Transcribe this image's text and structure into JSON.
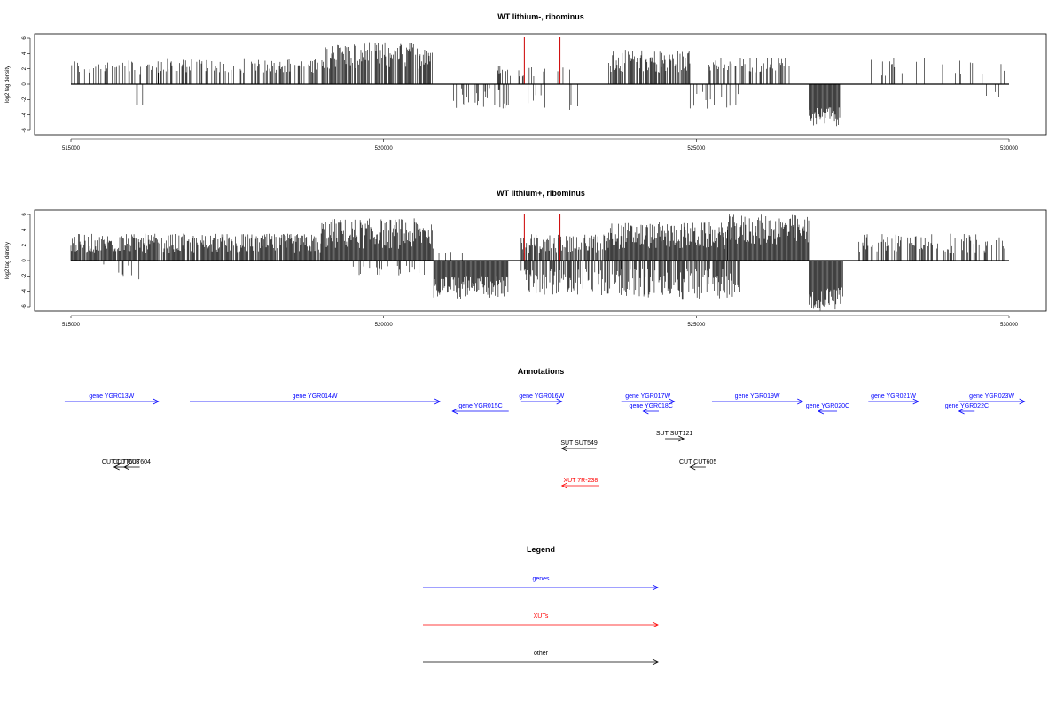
{
  "colors": {
    "gene": "#0000ff",
    "xut": "#ff0000",
    "other": "#000000",
    "marker": "#cc0000",
    "bar": "#000000"
  },
  "chart_data": [
    {
      "type": "bar",
      "title": "WT lithium-, ribominus",
      "ylabel": "log2 tag density",
      "xlim": [
        515000,
        530000
      ],
      "ylim": [
        -6,
        6
      ],
      "xticks": [
        515000,
        520000,
        525000,
        530000
      ],
      "yticks": [
        6,
        4,
        2,
        0,
        -2,
        -4,
        -6
      ],
      "markers": [
        522250,
        522820
      ],
      "plus_regions": [
        {
          "start": 515000,
          "end": 516400,
          "dens": 0.35,
          "min": 1.2,
          "max": 3.2
        },
        {
          "start": 516400,
          "end": 519000,
          "dens": 0.45,
          "min": 1.5,
          "max": 3.3
        },
        {
          "start": 519000,
          "end": 520800,
          "dens": 0.8,
          "min": 2.0,
          "max": 5.5
        },
        {
          "start": 521800,
          "end": 523000,
          "dens": 0.15,
          "min": 1.0,
          "max": 2.5
        },
        {
          "start": 523600,
          "end": 524900,
          "dens": 0.75,
          "min": 1.5,
          "max": 4.5
        },
        {
          "start": 525200,
          "end": 526500,
          "dens": 0.45,
          "min": 1.5,
          "max": 3.5
        },
        {
          "start": 527700,
          "end": 530000,
          "dens": 0.1,
          "min": 1.0,
          "max": 3.5
        }
      ],
      "minus_regions": [
        {
          "start": 516050,
          "end": 516150,
          "dens": 0.2,
          "min": 2.5,
          "max": 3.0
        },
        {
          "start": 520900,
          "end": 522000,
          "dens": 0.3,
          "min": 0.5,
          "max": 3.5
        },
        {
          "start": 522300,
          "end": 523200,
          "dens": 0.1,
          "min": 1.0,
          "max": 3.5
        },
        {
          "start": 524900,
          "end": 525700,
          "dens": 0.2,
          "min": 1.0,
          "max": 3.5
        },
        {
          "start": 526800,
          "end": 527300,
          "dens": 1.0,
          "min": 3.0,
          "max": 5.5
        },
        {
          "start": 529000,
          "end": 529900,
          "dens": 0.05,
          "min": 1.0,
          "max": 2.0
        }
      ]
    },
    {
      "type": "bar",
      "title": "WT lithium+, ribominus",
      "ylabel": "log2 tag density",
      "xlim": [
        515000,
        530000
      ],
      "ylim": [
        -6,
        6
      ],
      "xticks": [
        515000,
        520000,
        525000,
        530000
      ],
      "yticks": [
        6,
        4,
        2,
        0,
        -2,
        -4,
        -6
      ],
      "markers": [
        522250,
        522820
      ],
      "plus_regions": [
        {
          "start": 515000,
          "end": 519000,
          "dens": 0.9,
          "min": 1.0,
          "max": 3.5
        },
        {
          "start": 519000,
          "end": 520800,
          "dens": 1.0,
          "min": 1.5,
          "max": 5.5
        },
        {
          "start": 520800,
          "end": 522200,
          "dens": 0.05,
          "min": 0.5,
          "max": 1.5
        },
        {
          "start": 522200,
          "end": 523600,
          "dens": 0.8,
          "min": 1.0,
          "max": 3.5
        },
        {
          "start": 523600,
          "end": 525500,
          "dens": 1.0,
          "min": 1.5,
          "max": 5.0
        },
        {
          "start": 525500,
          "end": 526800,
          "dens": 1.0,
          "min": 2.0,
          "max": 6.0
        },
        {
          "start": 527600,
          "end": 530000,
          "dens": 0.4,
          "min": 1.0,
          "max": 3.5
        }
      ],
      "minus_regions": [
        {
          "start": 515500,
          "end": 516200,
          "dens": 0.15,
          "min": 0.5,
          "max": 2.5
        },
        {
          "start": 519500,
          "end": 520700,
          "dens": 0.2,
          "min": 0.5,
          "max": 2.0
        },
        {
          "start": 520800,
          "end": 522000,
          "dens": 1.0,
          "min": 2.0,
          "max": 5.0
        },
        {
          "start": 522200,
          "end": 523800,
          "dens": 0.6,
          "min": 1.0,
          "max": 4.5
        },
        {
          "start": 523800,
          "end": 525700,
          "dens": 0.7,
          "min": 1.0,
          "max": 5.0
        },
        {
          "start": 526800,
          "end": 527350,
          "dens": 1.0,
          "min": 3.5,
          "max": 6.5
        }
      ]
    }
  ],
  "annotations": {
    "title": "Annotations",
    "features": [
      {
        "label": "gene YGR013W",
        "type": "gene",
        "start": 514900,
        "end": 516400,
        "strand": "+",
        "row": 0
      },
      {
        "label": "gene YGR014W",
        "type": "gene",
        "start": 516900,
        "end": 520900,
        "strand": "+",
        "row": 0
      },
      {
        "label": "gene YGR015C",
        "type": "gene",
        "start": 521100,
        "end": 522000,
        "strand": "-",
        "row": 1
      },
      {
        "label": "gene YGR016W",
        "type": "gene",
        "start": 522200,
        "end": 522850,
        "strand": "+",
        "row": 0
      },
      {
        "label": "gene YGR017W",
        "type": "gene",
        "start": 523800,
        "end": 524650,
        "strand": "+",
        "row": 0
      },
      {
        "label": "gene YGR018C",
        "type": "gene",
        "start": 524150,
        "end": 524400,
        "strand": "-",
        "row": 1
      },
      {
        "label": "gene YGR019W",
        "type": "gene",
        "start": 525250,
        "end": 526700,
        "strand": "+",
        "row": 0
      },
      {
        "label": "gene YGR020C",
        "type": "gene",
        "start": 526950,
        "end": 527250,
        "strand": "-",
        "row": 1
      },
      {
        "label": "gene YGR021W",
        "type": "gene",
        "start": 527750,
        "end": 528550,
        "strand": "+",
        "row": 0
      },
      {
        "label": "gene YGR022C",
        "type": "gene",
        "start": 529200,
        "end": 529450,
        "strand": "-",
        "row": 1
      },
      {
        "label": "gene YGR023W",
        "type": "gene",
        "start": 529200,
        "end": 530250,
        "strand": "+",
        "row": 0
      },
      {
        "label": "SUT SUT549",
        "type": "other",
        "start": 522850,
        "end": 523400,
        "strand": "-",
        "row": 2
      },
      {
        "label": "SUT SUT121",
        "type": "other",
        "start": 524500,
        "end": 524800,
        "strand": "+",
        "row": 3
      },
      {
        "label": "CUT CUT603",
        "type": "other",
        "start": 515690,
        "end": 515900,
        "strand": "-",
        "row": 4
      },
      {
        "label": "CUT CUT604",
        "type": "other",
        "start": 515850,
        "end": 516100,
        "strand": "-",
        "row": 4
      },
      {
        "label": "CUT CUT605",
        "type": "other",
        "start": 524900,
        "end": 525150,
        "strand": "-",
        "row": 4
      },
      {
        "label": "XUT 7R-238",
        "type": "xut",
        "start": 522850,
        "end": 523450,
        "strand": "-",
        "row": 5
      }
    ]
  },
  "legend": {
    "title": "Legend",
    "items": [
      {
        "label": "genes",
        "type": "gene"
      },
      {
        "label": "XUTs",
        "type": "xut"
      },
      {
        "label": "other",
        "type": "other"
      }
    ]
  }
}
